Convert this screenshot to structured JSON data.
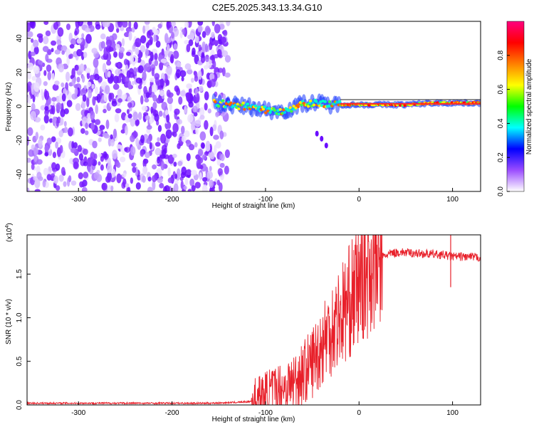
{
  "title": "C2E5.2025.343.13.34.G10",
  "chart_data": [
    {
      "type": "heatmap",
      "title": "C2E5.2025.343.13.34.G10",
      "xlabel": "Height of straight line (km)",
      "ylabel": "Frequency (Hz)",
      "xlim": [
        -355,
        130
      ],
      "ylim": [
        -50,
        50
      ],
      "xticks": [
        -300,
        -200,
        -100,
        0,
        100
      ],
      "yticks": [
        -40,
        -20,
        0,
        20,
        40
      ],
      "noise_region": {
        "x": [
          -355,
          -140
        ],
        "y": [
          -50,
          50
        ]
      },
      "signal_track": [
        {
          "x": -155,
          "y": 2
        },
        {
          "x": -140,
          "y": 1
        },
        {
          "x": -120,
          "y": 0
        },
        {
          "x": -100,
          "y": -2
        },
        {
          "x": -85,
          "y": -3
        },
        {
          "x": -70,
          "y": -1
        },
        {
          "x": -60,
          "y": 2
        },
        {
          "x": -45,
          "y": 2
        },
        {
          "x": -30,
          "y": 1
        },
        {
          "x": -15,
          "y": 1
        },
        {
          "x": 0,
          "y": 1
        },
        {
          "x": 20,
          "y": 1
        },
        {
          "x": 50,
          "y": 1
        },
        {
          "x": 80,
          "y": 2
        },
        {
          "x": 100,
          "y": 2
        },
        {
          "x": 130,
          "y": 2
        }
      ],
      "branch_track": [
        {
          "x": -45,
          "y": -16
        },
        {
          "x": -40,
          "y": -19
        },
        {
          "x": -35,
          "y": -23
        }
      ],
      "colorbar": {
        "label": "Normalized spectral amplitude",
        "range": [
          0,
          1
        ],
        "ticks": [
          "0.0",
          "0.2",
          "0.4",
          "0.6",
          "0.8"
        ],
        "colors": [
          "#ffffff",
          "#9b4dff",
          "#0000ff",
          "#00ffff",
          "#00ff00",
          "#ffff00",
          "#ff7f00",
          "#ff0000",
          "#ff007f"
        ]
      }
    },
    {
      "type": "line",
      "xlabel": "Height of straight line (km)",
      "ylabel": "SNR (10 * v/v)",
      "yscale_label": "(x10",
      "yscale_exp": "4",
      "xlim": [
        -355,
        130
      ],
      "ylim": [
        0,
        1.95
      ],
      "xticks": [
        -300,
        -200,
        -100,
        0,
        100
      ],
      "yticks": [
        "0.0",
        "0.5",
        "1.0",
        "1.5"
      ],
      "color": "#e8202a",
      "series": [
        {
          "x": [
            -355,
            -300,
            -250,
            -200,
            -160,
            -130,
            -115,
            -105,
            -95,
            -85,
            -75,
            -65,
            -55,
            -45,
            -35,
            -25,
            -15,
            -5,
            5,
            15,
            25,
            35,
            45,
            60,
            75,
            90,
            100,
            110,
            130
          ],
          "values": [
            0.02,
            0.02,
            0.02,
            0.02,
            0.02,
            0.03,
            0.04,
            0.08,
            0.14,
            0.18,
            0.22,
            0.32,
            0.42,
            0.58,
            0.8,
            0.95,
            1.1,
            1.28,
            1.5,
            1.62,
            1.7,
            1.74,
            1.75,
            1.74,
            1.73,
            1.72,
            1.7,
            1.7,
            1.69
          ]
        }
      ]
    }
  ]
}
